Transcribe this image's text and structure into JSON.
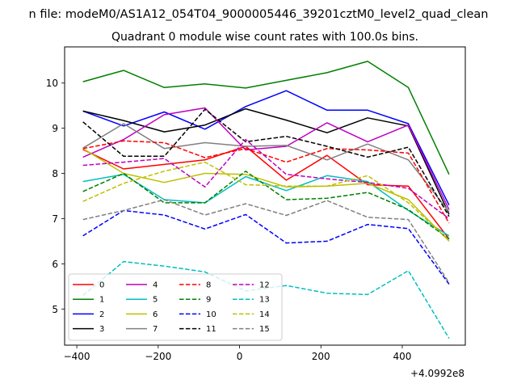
{
  "chart_data": {
    "type": "line",
    "suptitle": "n file: modeM0/AS1A12_054T04_9000005446_39201cztM0_level2_quad_clean",
    "title": "Quadrant 0 module wise count rates with 100.0s bins.",
    "xlabel": "",
    "ylabel": "",
    "x_offset_label": "+4.0992e8",
    "xlim": [
      -430,
      555
    ],
    "ylim": [
      4.2,
      10.8
    ],
    "x_ticks": [
      -400,
      -200,
      0,
      200,
      400
    ],
    "x_tick_labels": [
      "−400",
      "−200",
      "0",
      "200",
      "400"
    ],
    "y_ticks": [
      5,
      6,
      7,
      8,
      9,
      10
    ],
    "y_tick_labels": [
      "5",
      "6",
      "7",
      "8",
      "9",
      "10"
    ],
    "grid": false,
    "legend": {
      "position": "lower-left",
      "columns": 4
    },
    "x": [
      -385,
      -285,
      -185,
      -85,
      15,
      115,
      215,
      315,
      415,
      515
    ],
    "series": [
      {
        "name": "0",
        "color": "#ff0000",
        "style": "solid",
        "values": [
          8.53,
          8.1,
          8.2,
          8.3,
          8.6,
          7.85,
          8.4,
          7.75,
          7.72,
          6.55
        ]
      },
      {
        "name": "1",
        "color": "#008000",
        "style": "solid",
        "values": [
          10.03,
          10.28,
          9.9,
          9.98,
          9.89,
          10.06,
          10.23,
          10.48,
          9.9,
          7.98
        ]
      },
      {
        "name": "2",
        "color": "#0000ff",
        "style": "solid",
        "values": [
          9.38,
          9.05,
          9.36,
          8.98,
          9.48,
          9.83,
          9.4,
          9.4,
          9.1,
          7.3
        ]
      },
      {
        "name": "3",
        "color": "#000000",
        "style": "solid",
        "values": [
          9.38,
          9.17,
          8.92,
          9.07,
          9.43,
          9.18,
          8.9,
          9.23,
          9.05,
          7.1
        ]
      },
      {
        "name": "4",
        "color": "#bf00bf",
        "style": "solid",
        "values": [
          8.36,
          8.75,
          9.3,
          9.45,
          8.52,
          8.6,
          9.12,
          8.7,
          9.07,
          7.2
        ]
      },
      {
        "name": "5",
        "color": "#00bfbf",
        "style": "solid",
        "values": [
          7.82,
          7.98,
          7.42,
          7.35,
          7.93,
          7.62,
          7.95,
          7.82,
          7.18,
          6.62
        ]
      },
      {
        "name": "6",
        "color": "#bfbf00",
        "style": "solid",
        "values": [
          8.55,
          8.0,
          7.8,
          8.0,
          7.98,
          7.7,
          7.72,
          7.78,
          7.42,
          6.5
        ]
      },
      {
        "name": "7",
        "color": "#808080",
        "style": "solid",
        "values": [
          8.56,
          9.1,
          8.55,
          8.68,
          8.6,
          8.62,
          8.3,
          8.65,
          8.3,
          7.15
        ]
      },
      {
        "name": "8",
        "color": "#ff0000",
        "style": "dashed",
        "values": [
          8.55,
          8.72,
          8.68,
          8.35,
          8.55,
          8.25,
          8.55,
          8.52,
          8.45,
          6.9
        ]
      },
      {
        "name": "9",
        "color": "#008000",
        "style": "dashed",
        "values": [
          7.6,
          8.0,
          7.35,
          7.35,
          8.05,
          7.42,
          7.45,
          7.58,
          7.2,
          6.55
        ]
      },
      {
        "name": "10",
        "color": "#0000ff",
        "style": "dashed",
        "values": [
          6.62,
          7.18,
          7.08,
          6.77,
          7.09,
          6.46,
          6.5,
          6.87,
          6.78,
          5.55
        ]
      },
      {
        "name": "11",
        "color": "#000000",
        "style": "dashed",
        "values": [
          9.14,
          8.38,
          8.38,
          9.42,
          8.7,
          8.82,
          8.6,
          8.36,
          8.58,
          7.05
        ]
      },
      {
        "name": "12",
        "color": "#bf00bf",
        "style": "dashed",
        "values": [
          8.18,
          8.25,
          8.33,
          7.7,
          8.75,
          7.98,
          7.88,
          7.8,
          7.67,
          7.0
        ]
      },
      {
        "name": "13",
        "color": "#00bfbf",
        "style": "dashed",
        "values": [
          5.3,
          6.05,
          5.95,
          5.82,
          5.4,
          5.52,
          5.35,
          5.32,
          5.85,
          4.35
        ]
      },
      {
        "name": "14",
        "color": "#bfbf00",
        "style": "dashed",
        "values": [
          7.38,
          7.78,
          8.05,
          8.25,
          7.75,
          7.72,
          7.72,
          7.95,
          7.35,
          6.52
        ]
      },
      {
        "name": "15",
        "color": "#808080",
        "style": "dashed",
        "values": [
          6.98,
          7.18,
          7.42,
          7.08,
          7.33,
          7.07,
          7.4,
          7.03,
          6.98,
          5.58
        ]
      }
    ]
  }
}
